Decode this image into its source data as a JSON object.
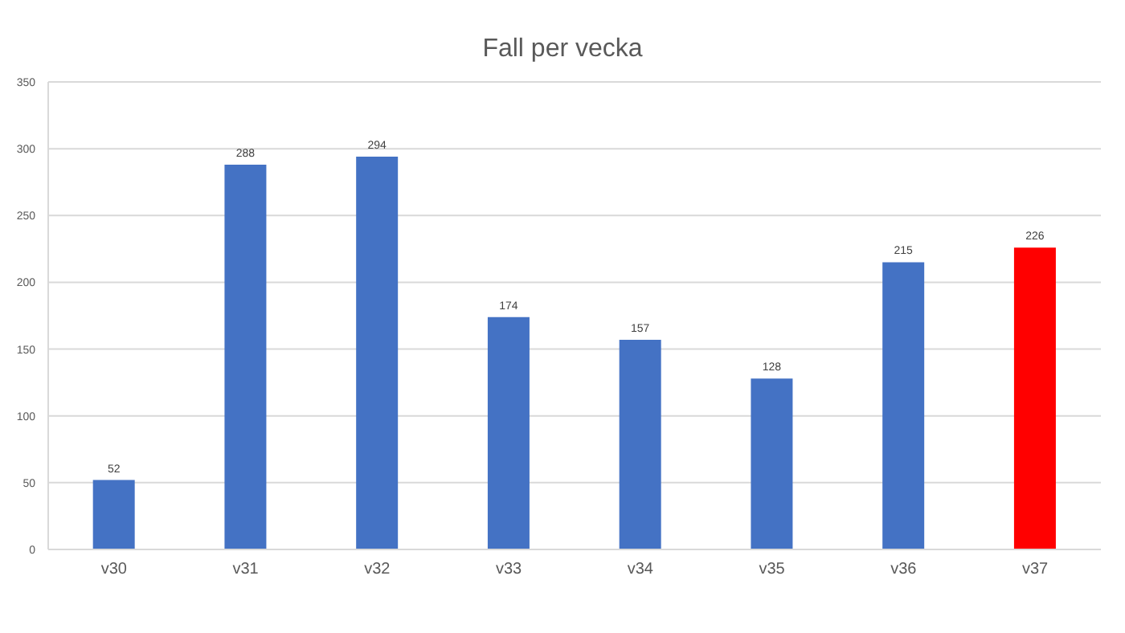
{
  "chart_data": {
    "type": "bar",
    "title": "Fall per vecka",
    "categories": [
      "v30",
      "v31",
      "v32",
      "v33",
      "v34",
      "v35",
      "v36",
      "v37"
    ],
    "values": [
      52,
      288,
      294,
      174,
      157,
      128,
      215,
      226
    ],
    "colors": [
      "#4472c4",
      "#4472c4",
      "#4472c4",
      "#4472c4",
      "#4472c4",
      "#4472c4",
      "#4472c4",
      "#ff0000"
    ],
    "ylim": [
      0,
      350
    ],
    "yticks": [
      0,
      50,
      100,
      150,
      200,
      250,
      300,
      350
    ],
    "grid": "y",
    "data_labels": true
  }
}
